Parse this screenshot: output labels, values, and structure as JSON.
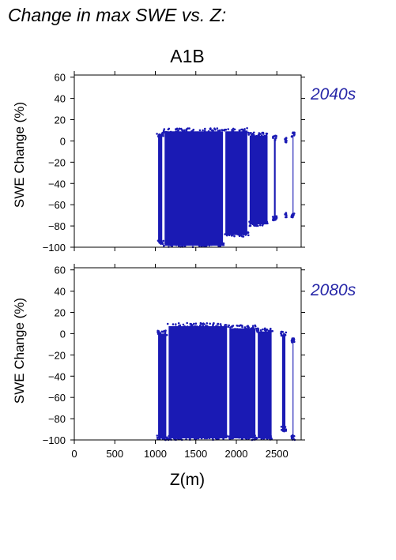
{
  "title": "Change in max SWE vs. Z:",
  "scenario": "A1B",
  "colors": {
    "points": "#1a1ab4",
    "period_label": "#2727a8",
    "axis": "#000000"
  },
  "chart_data": [
    {
      "type": "scatter",
      "period": "2040s",
      "ylabel": "SWE Change (%)",
      "xlabel": "",
      "xlim": [
        0,
        2800
      ],
      "ylim": [
        -100,
        62
      ],
      "yticks": [
        "60",
        "40",
        "20",
        "0",
        "−20",
        "−40",
        "−60",
        "−80",
        "−100"
      ],
      "xticks": [],
      "clusters": [
        {
          "x": [
            1020,
            1100
          ],
          "y": [
            -97,
            8
          ]
        },
        {
          "x": [
            1100,
            1850
          ],
          "y": [
            -100,
            12
          ]
        },
        {
          "x": [
            1850,
            2150
          ],
          "y": [
            -90,
            12
          ]
        },
        {
          "x": [
            2150,
            2400
          ],
          "y": [
            -80,
            8
          ]
        },
        {
          "x": [
            2450,
            2500
          ],
          "y": [
            -75,
            5
          ]
        },
        {
          "x": [
            2600,
            2620
          ],
          "y": [
            -72,
            3
          ]
        },
        {
          "x": [
            2680,
            2720
          ],
          "y": [
            -72,
            8
          ]
        }
      ]
    },
    {
      "type": "scatter",
      "period": "2080s",
      "ylabel": "SWE Change (%)",
      "xlabel": "Z(m)",
      "xlim": [
        0,
        2800
      ],
      "ylim": [
        -100,
        62
      ],
      "yticks": [
        "60",
        "40",
        "20",
        "0",
        "−20",
        "−40",
        "−60",
        "−80",
        "−100"
      ],
      "xticks": [
        "0",
        "500",
        "1000",
        "1500",
        "2000",
        "2500"
      ],
      "clusters": [
        {
          "x": [
            1020,
            1150
          ],
          "y": [
            -100,
            3
          ]
        },
        {
          "x": [
            1150,
            1900
          ],
          "y": [
            -100,
            10
          ]
        },
        {
          "x": [
            1900,
            2250
          ],
          "y": [
            -100,
            8
          ]
        },
        {
          "x": [
            2250,
            2450
          ],
          "y": [
            -100,
            5
          ]
        },
        {
          "x": [
            2550,
            2620
          ],
          "y": [
            -92,
            2
          ]
        },
        {
          "x": [
            2680,
            2720
          ],
          "y": [
            -100,
            -4
          ]
        }
      ]
    }
  ]
}
